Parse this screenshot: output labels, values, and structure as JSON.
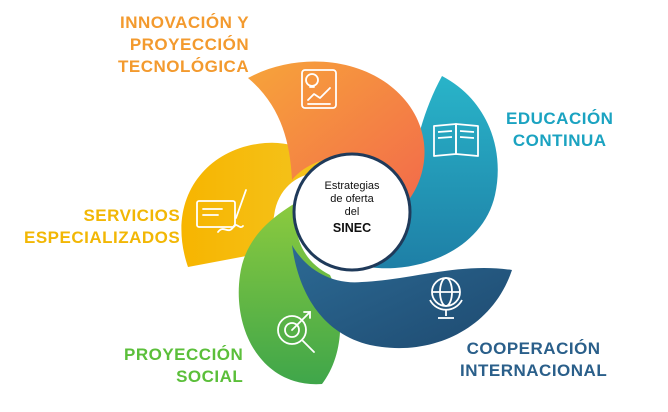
{
  "center": {
    "line1": "Estrategias",
    "line2": "de oferta",
    "line3": "del",
    "line4": "SINEC"
  },
  "segments": [
    {
      "id": "innovacion",
      "lines": [
        "INNOVACIÓN Y",
        "PROYECCIÓN",
        "TECNOLÓGICA"
      ],
      "color": "#F39A2E",
      "icon": "lightbulb-chart-icon"
    },
    {
      "id": "educacion",
      "lines": [
        "EDUCACIÓN",
        "CONTINUA"
      ],
      "color": "#1BA3C1",
      "icon": "open-book-icon"
    },
    {
      "id": "cooperacion",
      "lines": [
        "COOPERACIÓN",
        "INTERNACIONAL"
      ],
      "color": "#2A5F8A",
      "icon": "globe-icon"
    },
    {
      "id": "social",
      "lines": [
        "PROYECCIÓN",
        "SOCIAL"
      ],
      "color": "#5BBF3A",
      "icon": "target-magnifier-icon"
    },
    {
      "id": "servicios",
      "lines": [
        "SERVICIOS",
        "ESPECIALIZADOS"
      ],
      "color": "#F2B705",
      "icon": "certificate-signature-icon"
    }
  ]
}
